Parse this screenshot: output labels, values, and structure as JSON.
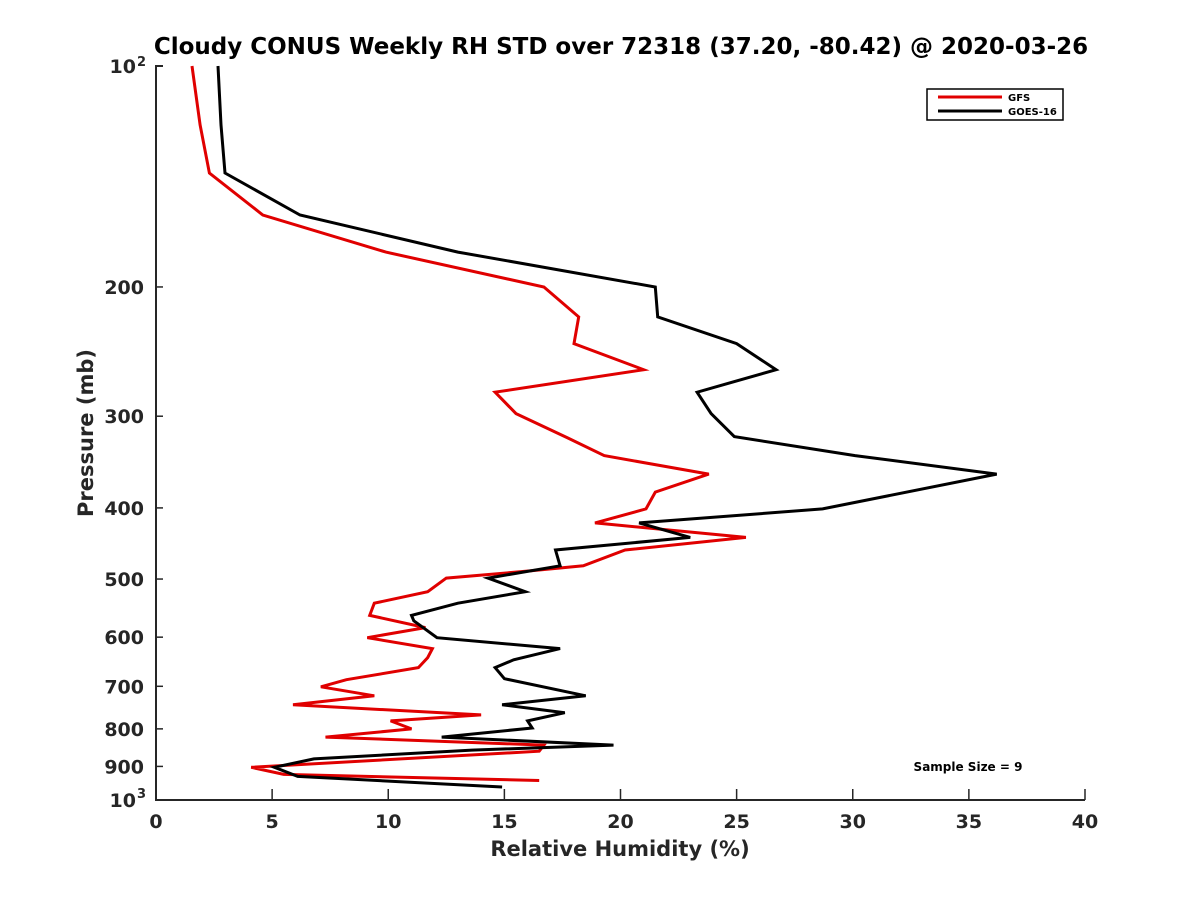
{
  "chart_data": {
    "type": "line",
    "orientation": "profile (x = value, y = pressure, log scale reversed)",
    "title": "Cloudy CONUS Weekly RH STD over 72318 (37.20, -80.42) @ 2020-03-26",
    "xlabel": "Relative Humidity (%)",
    "ylabel": "Pressure (mb)",
    "xlim": [
      0,
      40
    ],
    "ylim": [
      100,
      1000
    ],
    "yscale": "log",
    "yreversed": true,
    "grid": false,
    "xticks": [
      "0",
      "5",
      "10",
      "15",
      "20",
      "25",
      "30",
      "35",
      "40"
    ],
    "xtick_values": [
      0,
      5,
      10,
      15,
      20,
      25,
      30,
      35,
      40
    ],
    "yticks": [
      {
        "value": 100,
        "label": "10",
        "sup": "2"
      },
      {
        "value": 200,
        "label": "200",
        "sup": ""
      },
      {
        "value": 300,
        "label": "300",
        "sup": ""
      },
      {
        "value": 400,
        "label": "400",
        "sup": ""
      },
      {
        "value": 500,
        "label": "500",
        "sup": ""
      },
      {
        "value": 600,
        "label": "600",
        "sup": ""
      },
      {
        "value": 700,
        "label": "700",
        "sup": ""
      },
      {
        "value": 800,
        "label": "800",
        "sup": ""
      },
      {
        "value": 900,
        "label": "900",
        "sup": ""
      },
      {
        "value": 1000,
        "label": "10",
        "sup": "3"
      }
    ],
    "legend_position": "top-right",
    "annotation": "Sample Size = 9",
    "series": [
      {
        "name": "GFS",
        "color": "#e00000",
        "points": [
          [
            1.55,
            100
          ],
          [
            1.9,
            120.3
          ],
          [
            2.3,
            139.9
          ],
          [
            4.6,
            159.6
          ],
          [
            9.9,
            179.3
          ],
          [
            16.7,
            200
          ],
          [
            18.2,
            219.7
          ],
          [
            18.0,
            238.9
          ],
          [
            21.0,
            259.3
          ],
          [
            14.6,
            278.2
          ],
          [
            15.5,
            297.6
          ],
          [
            17.7,
            320.8
          ],
          [
            19.3,
            339.5
          ],
          [
            23.8,
            359.8
          ],
          [
            21.5,
            380.6
          ],
          [
            21.1,
            401.2
          ],
          [
            18.9,
            419.3
          ],
          [
            25.4,
            438.8
          ],
          [
            20.2,
            456.5
          ],
          [
            18.4,
            479.6
          ],
          [
            16.1,
            487.4
          ],
          [
            12.5,
            498.5
          ],
          [
            11.7,
            520.3
          ],
          [
            9.4,
            539.3
          ],
          [
            9.2,
            560.4
          ],
          [
            11.6,
            582.3
          ],
          [
            9.1,
            601.0
          ],
          [
            11.9,
            621.9
          ],
          [
            11.7,
            639.8
          ],
          [
            11.3,
            660.2
          ],
          [
            8.2,
            685.6
          ],
          [
            7.1,
            701.0
          ],
          [
            9.4,
            721.2
          ],
          [
            5.9,
            741.9
          ],
          [
            14.0,
            765.6
          ],
          [
            10.1,
            780.2
          ],
          [
            11.0,
            800.2
          ],
          [
            7.3,
            820.8
          ],
          [
            16.7,
            841.9
          ],
          [
            16.5,
            858.0
          ],
          [
            4.1,
            902.4
          ],
          [
            5.5,
            922.7
          ],
          [
            16.5,
            940.6
          ]
        ]
      },
      {
        "name": "GOES-16",
        "color": "#000000",
        "points": [
          [
            2.67,
            100
          ],
          [
            2.8,
            120.3
          ],
          [
            2.97,
            139.9
          ],
          [
            6.2,
            159.6
          ],
          [
            13.0,
            179.3
          ],
          [
            21.5,
            200
          ],
          [
            21.6,
            219.7
          ],
          [
            25.0,
            238.9
          ],
          [
            26.7,
            259.3
          ],
          [
            23.3,
            278.2
          ],
          [
            23.9,
            297.6
          ],
          [
            24.9,
            319.8
          ],
          [
            30.1,
            339.5
          ],
          [
            36.2,
            359.8
          ],
          [
            28.7,
            401.2
          ],
          [
            20.8,
            419.3
          ],
          [
            23.0,
            438.8
          ],
          [
            17.2,
            456.5
          ],
          [
            17.4,
            479.6
          ],
          [
            14.3,
            498.5
          ],
          [
            15.9,
            520.3
          ],
          [
            13.0,
            539.3
          ],
          [
            11.0,
            560.4
          ],
          [
            11.1,
            570.0
          ],
          [
            12.1,
            601.0
          ],
          [
            17.4,
            621.9
          ],
          [
            15.4,
            644.2
          ],
          [
            14.6,
            660.2
          ],
          [
            15.0,
            683.5
          ],
          [
            18.5,
            721.2
          ],
          [
            14.9,
            741.9
          ],
          [
            17.6,
            760.5
          ],
          [
            16.0,
            780.2
          ],
          [
            16.2,
            797.7
          ],
          [
            12.3,
            820.8
          ],
          [
            19.7,
            841.9
          ],
          [
            13.6,
            855.2
          ],
          [
            6.8,
            879.1
          ],
          [
            5.1,
            902.4
          ],
          [
            6.1,
            928.5
          ],
          [
            14.9,
            960.0
          ]
        ]
      }
    ]
  }
}
